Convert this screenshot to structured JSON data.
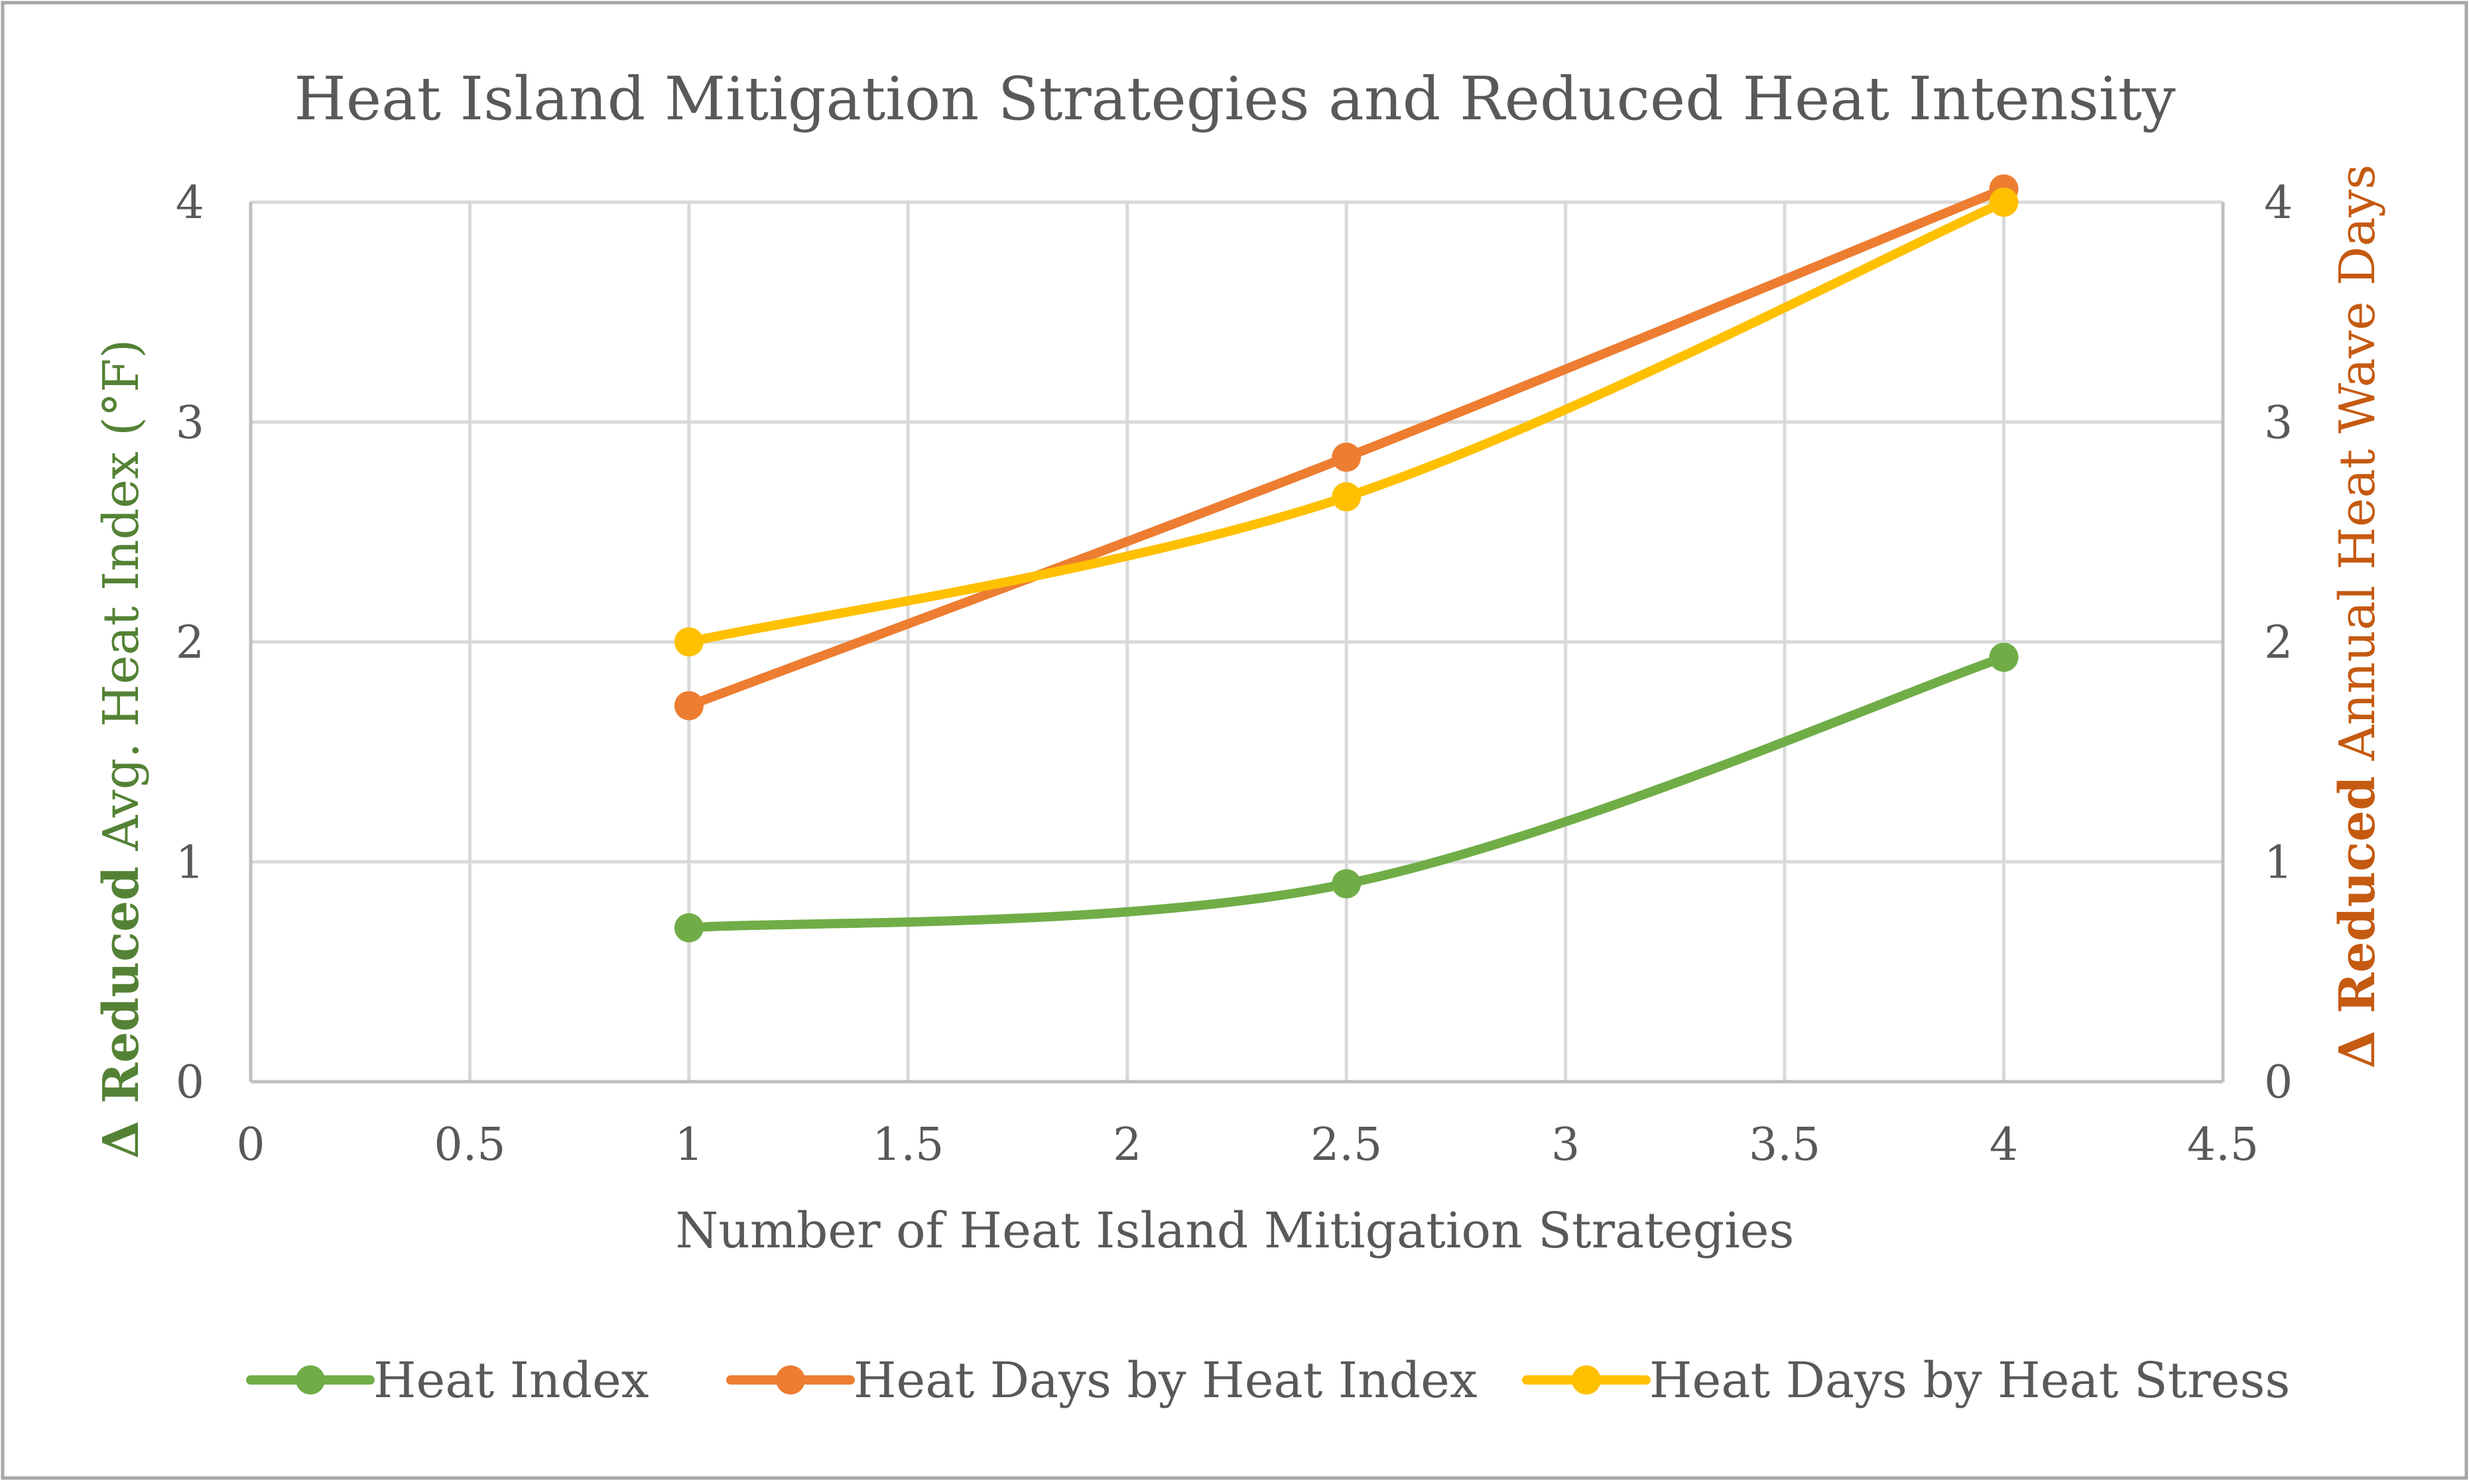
{
  "chart_data": {
    "type": "line",
    "title": "Heat Island Mitigation Strategies and Reduced Heat Intensity",
    "xlabel": "Number of Heat Island Mitigation Strategies",
    "ylabel_left": {
      "prefix": "Δ Reduced",
      "rest": " Avg. Heat Index (°F)",
      "color": "#548235"
    },
    "ylabel_right": {
      "prefix": "Δ Reduced",
      "rest": " Annual Heat Wave Days",
      "color": "#c55a11"
    },
    "xlim": [
      0,
      4.5
    ],
    "ylim_left": [
      0,
      4
    ],
    "ylim_right": [
      0,
      4
    ],
    "x_ticks": [
      "0",
      "0.5",
      "1",
      "1.5",
      "2",
      "2.5",
      "3",
      "3.5",
      "4",
      "4.5"
    ],
    "y_ticks_left": [
      "0",
      "1",
      "2",
      "3",
      "4"
    ],
    "y_ticks_right": [
      "0",
      "1",
      "2",
      "3",
      "4"
    ],
    "grid": true,
    "legend_position": "bottom",
    "series": [
      {
        "name": "Heat Index",
        "color": "#70ad47",
        "axis": "left",
        "smooth": true,
        "x": [
          1,
          2.5,
          4
        ],
        "y": [
          0.7,
          0.9,
          1.93
        ]
      },
      {
        "name": "Heat Days by Heat Index",
        "color": "#ed7d31",
        "axis": "right",
        "smooth": true,
        "x": [
          1,
          2.5,
          4
        ],
        "y": [
          1.71,
          2.84,
          4.06
        ]
      },
      {
        "name": "Heat Days by Heat Stress",
        "color": "#ffc000",
        "axis": "right",
        "smooth": true,
        "x": [
          1,
          2.5,
          4
        ],
        "y": [
          2.0,
          2.66,
          4.0
        ]
      }
    ]
  }
}
